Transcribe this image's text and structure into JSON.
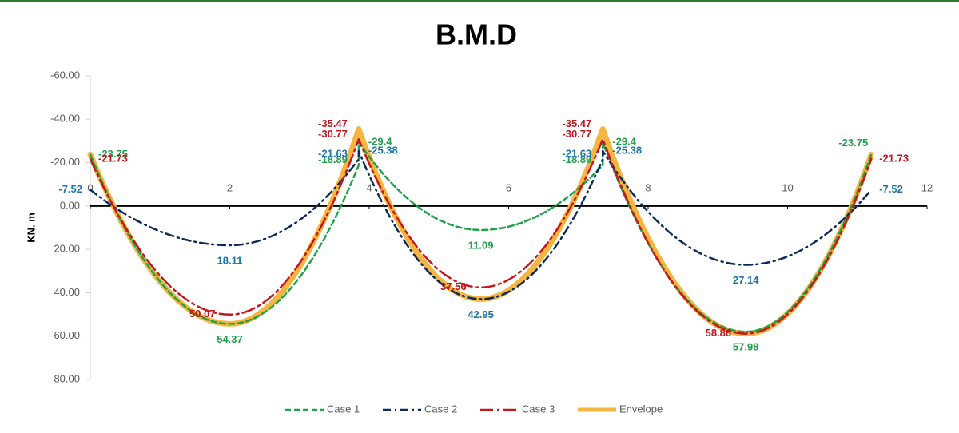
{
  "chart_data": {
    "type": "line",
    "title": "B.M.D",
    "y_label": "KN. m",
    "x": [
      0,
      2,
      3.85,
      3.85,
      5.6,
      7.35,
      7.35,
      9.4,
      11.2
    ],
    "xlim": [
      0,
      12
    ],
    "xticks": [
      0,
      2,
      4,
      6,
      8,
      10,
      12
    ],
    "ylim": [
      -60,
      80
    ],
    "y_inverted": true,
    "yticks": [
      {
        "value": -60,
        "label": "-60.00"
      },
      {
        "value": -40,
        "label": "-40.00"
      },
      {
        "value": -20,
        "label": "-20.00"
      },
      {
        "value": 0,
        "label": "0.00"
      },
      {
        "value": 20,
        "label": "20.00"
      },
      {
        "value": 40,
        "label": "40.00"
      },
      {
        "value": 60,
        "label": "60.00"
      },
      {
        "value": 80,
        "label": "80.00"
      }
    ],
    "series": [
      {
        "name": "Case 1",
        "color": "#1fa34a",
        "label_color": "#22a04b",
        "dash": "7,4",
        "values": [
          -23.75,
          54.37,
          -18.89,
          -29.4,
          11.09,
          -18.89,
          -29.4,
          57.98,
          -23.75
        ]
      },
      {
        "name": "Case 2",
        "color": "#0d2a5c",
        "label_color": "#1c75a8",
        "dash": "10,5,2,5",
        "values": [
          -7.52,
          18.11,
          -21.63,
          -25.38,
          42.95,
          -21.63,
          -25.38,
          27.14,
          -7.52
        ]
      },
      {
        "name": "Case 3",
        "color": "#c8161d",
        "label_color": "#c0161b",
        "dash": "16,5,3,5",
        "values": [
          -21.73,
          50.07,
          -30.77,
          -30.77,
          37.56,
          -30.77,
          -30.77,
          58.86,
          -21.73
        ]
      },
      {
        "name": "Envelope",
        "color": "#f4b63f",
        "label_color": "#c0161b",
        "dash": "none",
        "values": [
          -23.75,
          54.37,
          -35.47,
          -35.47,
          42.95,
          -35.47,
          -35.47,
          58.86,
          -23.75
        ]
      }
    ]
  }
}
